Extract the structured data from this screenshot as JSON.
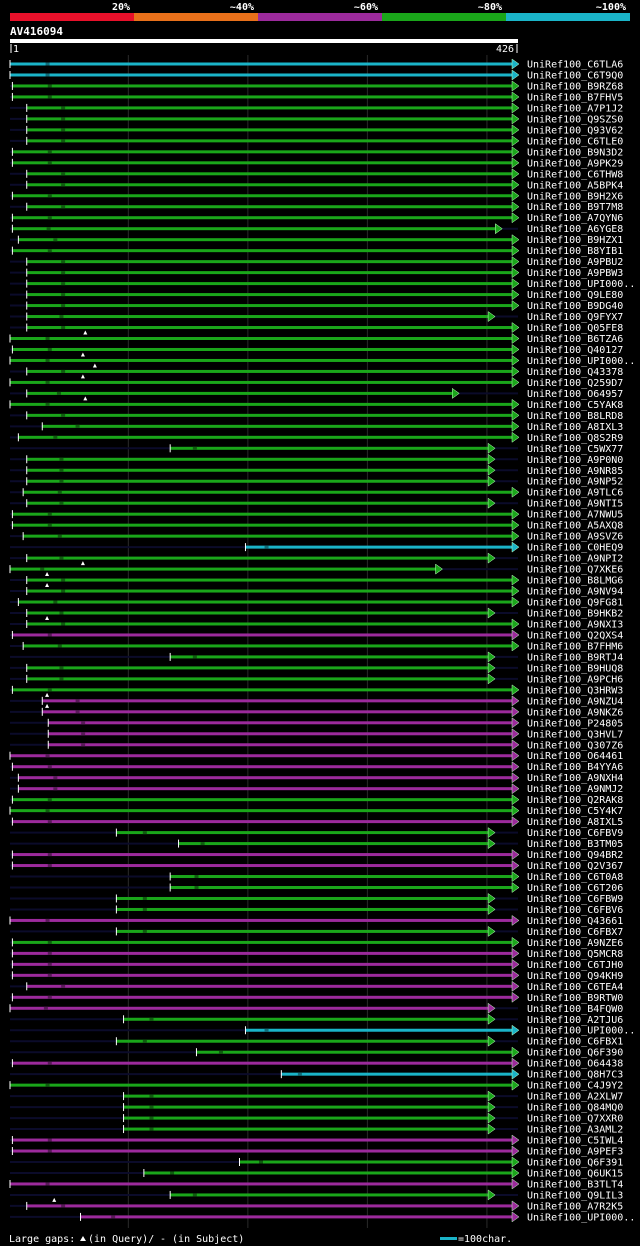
{
  "chart_data": {
    "type": "alignment",
    "query_id": "AV416094",
    "query_length": 426,
    "axis_start_label": "1",
    "axis_end_label": "426",
    "legend": [
      {
        "label": "20%",
        "color": "#e8102a"
      },
      {
        "label": "~40%",
        "color": "#e8701a"
      },
      {
        "label": "~60%",
        "color": "#9c2a9c"
      },
      {
        "label": "~80%",
        "color": "#1aa61a"
      },
      {
        "label": "~100%",
        "color": "#1ab4c8"
      }
    ],
    "footer": {
      "gaps_label": "Large gaps:",
      "query_gap_text": "(in Query)/",
      "subject_gap_text": "- (in Subject)",
      "scale_text": "=100char."
    },
    "hits": [
      {
        "name": "UniRef100_C6TLA6",
        "start": 1,
        "end": 426,
        "cat": 5
      },
      {
        "name": "UniRef100_C6T9Q0",
        "start": 1,
        "end": 426,
        "cat": 5
      },
      {
        "name": "UniRef100_B9RZ68",
        "start": 3,
        "end": 426,
        "cat": 4
      },
      {
        "name": "UniRef100_B7FHV5",
        "start": 3,
        "end": 426,
        "cat": 4
      },
      {
        "name": "UniRef100_A7P1J2",
        "start": 15,
        "end": 426,
        "cat": 4
      },
      {
        "name": "UniRef100_Q9SZS0",
        "start": 15,
        "end": 426,
        "cat": 4
      },
      {
        "name": "UniRef100_Q93V62",
        "start": 15,
        "end": 426,
        "cat": 4
      },
      {
        "name": "UniRef100_C6TLE0",
        "start": 15,
        "end": 426,
        "cat": 4
      },
      {
        "name": "UniRef100_B9N3D2",
        "start": 3,
        "end": 426,
        "cat": 4
      },
      {
        "name": "UniRef100_A9PK29",
        "start": 3,
        "end": 426,
        "cat": 4
      },
      {
        "name": "UniRef100_C6THW8",
        "start": 15,
        "end": 426,
        "cat": 4
      },
      {
        "name": "UniRef100_A5BPK4",
        "start": 15,
        "end": 426,
        "cat": 4
      },
      {
        "name": "UniRef100_B9H2X6",
        "start": 3,
        "end": 426,
        "cat": 4
      },
      {
        "name": "UniRef100_B9T7M8",
        "start": 15,
        "end": 426,
        "cat": 4
      },
      {
        "name": "UniRef100_A7QYN6",
        "start": 3,
        "end": 426,
        "cat": 4
      },
      {
        "name": "UniRef100_A6YGE8",
        "start": 3,
        "end": 412,
        "cat": 4
      },
      {
        "name": "UniRef100_B9HZX1",
        "start": 8,
        "end": 426,
        "cat": 4
      },
      {
        "name": "UniRef100_B8YIB1",
        "start": 3,
        "end": 426,
        "cat": 4
      },
      {
        "name": "UniRef100_A9PBU2",
        "start": 15,
        "end": 426,
        "cat": 4
      },
      {
        "name": "UniRef100_A9PBW3",
        "start": 15,
        "end": 426,
        "cat": 4
      },
      {
        "name": "UniRef100_UPI000..",
        "start": 15,
        "end": 426,
        "cat": 4
      },
      {
        "name": "UniRef100_Q9LE80",
        "start": 15,
        "end": 426,
        "cat": 4
      },
      {
        "name": "UniRef100_B9DG40",
        "start": 15,
        "end": 426,
        "cat": 4
      },
      {
        "name": "UniRef100_Q9FYX7",
        "start": 15,
        "end": 406,
        "cat": 4
      },
      {
        "name": "UniRef100_Q05FE8",
        "start": 15,
        "end": 426,
        "cat": 4
      },
      {
        "name": "UniRef100_B6TZA6",
        "start": 1,
        "end": 426,
        "cat": 4,
        "qgap": 64
      },
      {
        "name": "UniRef100_Q40127",
        "start": 3,
        "end": 426,
        "cat": 4
      },
      {
        "name": "UniRef100_UPI000..",
        "start": 1,
        "end": 426,
        "cat": 4,
        "qgap": 62
      },
      {
        "name": "UniRef100_Q43378",
        "start": 15,
        "end": 426,
        "cat": 4,
        "qgap": 72
      },
      {
        "name": "UniRef100_Q259D7",
        "start": 1,
        "end": 426,
        "cat": 4,
        "qgap": 62
      },
      {
        "name": "UniRef100_O64957",
        "start": 15,
        "end": 376,
        "cat": 4
      },
      {
        "name": "UniRef100_C5YAK8",
        "start": 1,
        "end": 426,
        "cat": 4,
        "qgap": 64
      },
      {
        "name": "UniRef100_B8LRD8",
        "start": 15,
        "end": 426,
        "cat": 4
      },
      {
        "name": "UniRef100_A8IXL3",
        "start": 28,
        "end": 426,
        "cat": 4
      },
      {
        "name": "UniRef100_Q8S2R9",
        "start": 8,
        "end": 426,
        "cat": 4
      },
      {
        "name": "UniRef100_C5WX77",
        "start": 135,
        "end": 406,
        "cat": 4
      },
      {
        "name": "UniRef100_A9P0N0",
        "start": 15,
        "end": 406,
        "cat": 4
      },
      {
        "name": "UniRef100_A9NR85",
        "start": 15,
        "end": 406,
        "cat": 4
      },
      {
        "name": "UniRef100_A9NP52",
        "start": 15,
        "end": 406,
        "cat": 4
      },
      {
        "name": "UniRef100_A9TLC6",
        "start": 12,
        "end": 426,
        "cat": 4
      },
      {
        "name": "UniRef100_A9NTI5",
        "start": 15,
        "end": 406,
        "cat": 4
      },
      {
        "name": "UniRef100_A7NWU5",
        "start": 3,
        "end": 426,
        "cat": 4
      },
      {
        "name": "UniRef100_A5AXQ8",
        "start": 3,
        "end": 426,
        "cat": 4
      },
      {
        "name": "UniRef100_A9SVZ6",
        "start": 12,
        "end": 426,
        "cat": 4
      },
      {
        "name": "UniRef100_C0HEQ9",
        "start": 198,
        "end": 426,
        "cat": 5
      },
      {
        "name": "UniRef100_A9NPI2",
        "start": 15,
        "end": 406,
        "cat": 4
      },
      {
        "name": "UniRef100_Q7XKE6",
        "start": 1,
        "end": 362,
        "cat": 4,
        "qgap": 62
      },
      {
        "name": "UniRef100_B8LMG6",
        "start": 15,
        "end": 426,
        "cat": 4,
        "qgap": 32
      },
      {
        "name": "UniRef100_A9NV94",
        "start": 15,
        "end": 426,
        "cat": 4,
        "qgap": 32
      },
      {
        "name": "UniRef100_Q9FG81",
        "start": 8,
        "end": 426,
        "cat": 4
      },
      {
        "name": "UniRef100_B9HKB2",
        "start": 15,
        "end": 406,
        "cat": 4
      },
      {
        "name": "UniRef100_A9NXI3",
        "start": 15,
        "end": 426,
        "cat": 4,
        "qgap": 32
      },
      {
        "name": "UniRef100_Q2QXS4",
        "start": 3,
        "end": 426,
        "cat": 3
      },
      {
        "name": "UniRef100_B7FHM6",
        "start": 12,
        "end": 426,
        "cat": 4
      },
      {
        "name": "UniRef100_B9RTJ4",
        "start": 135,
        "end": 406,
        "cat": 4
      },
      {
        "name": "UniRef100_B9HUQ8",
        "start": 15,
        "end": 406,
        "cat": 4
      },
      {
        "name": "UniRef100_A9PCH6",
        "start": 15,
        "end": 406,
        "cat": 4
      },
      {
        "name": "UniRef100_Q3HRW3",
        "start": 3,
        "end": 426,
        "cat": 4
      },
      {
        "name": "UniRef100_A9NZU4",
        "start": 28,
        "end": 426,
        "cat": 3,
        "qgap": 32
      },
      {
        "name": "UniRef100_A9NKZ6",
        "start": 28,
        "end": 426,
        "cat": 3,
        "qgap": 32
      },
      {
        "name": "UniRef100_P24805",
        "start": 33,
        "end": 426,
        "cat": 3
      },
      {
        "name": "UniRef100_Q3HVL7",
        "start": 33,
        "end": 426,
        "cat": 3
      },
      {
        "name": "UniRef100_Q307Z6",
        "start": 33,
        "end": 426,
        "cat": 3
      },
      {
        "name": "UniRef100_O64461",
        "start": 1,
        "end": 426,
        "cat": 3
      },
      {
        "name": "UniRef100_B4YYA6",
        "start": 3,
        "end": 426,
        "cat": 3
      },
      {
        "name": "UniRef100_A9NXH4",
        "start": 8,
        "end": 426,
        "cat": 3
      },
      {
        "name": "UniRef100_A9NMJ2",
        "start": 8,
        "end": 426,
        "cat": 3
      },
      {
        "name": "UniRef100_Q2RAK8",
        "start": 3,
        "end": 426,
        "cat": 4
      },
      {
        "name": "UniRef100_C5Y4K7",
        "start": 1,
        "end": 426,
        "cat": 4
      },
      {
        "name": "UniRef100_A8IXL5",
        "start": 3,
        "end": 426,
        "cat": 3
      },
      {
        "name": "UniRef100_C6FBV9",
        "start": 90,
        "end": 406,
        "cat": 4
      },
      {
        "name": "UniRef100_B3TM05",
        "start": 142,
        "end": 406,
        "cat": 4
      },
      {
        "name": "UniRef100_Q94BR2",
        "start": 3,
        "end": 426,
        "cat": 3
      },
      {
        "name": "UniRef100_Q2V367",
        "start": 3,
        "end": 426,
        "cat": 3
      },
      {
        "name": "UniRef100_C6T0A8",
        "start": 135,
        "end": 426,
        "cat": 4
      },
      {
        "name": "UniRef100_C6T206",
        "start": 135,
        "end": 426,
        "cat": 4
      },
      {
        "name": "UniRef100_C6FBW9",
        "start": 90,
        "end": 406,
        "cat": 4
      },
      {
        "name": "UniRef100_C6FBV6",
        "start": 90,
        "end": 406,
        "cat": 4
      },
      {
        "name": "UniRef100_Q43661",
        "start": 1,
        "end": 426,
        "cat": 3
      },
      {
        "name": "UniRef100_C6FBX7",
        "start": 90,
        "end": 406,
        "cat": 4
      },
      {
        "name": "UniRef100_A9NZE6",
        "start": 3,
        "end": 426,
        "cat": 4
      },
      {
        "name": "UniRef100_Q5MCR8",
        "start": 3,
        "end": 426,
        "cat": 3
      },
      {
        "name": "UniRef100_C6TJH0",
        "start": 3,
        "end": 426,
        "cat": 3
      },
      {
        "name": "UniRef100_Q94KH9",
        "start": 3,
        "end": 426,
        "cat": 3
      },
      {
        "name": "UniRef100_C6TEA4",
        "start": 15,
        "end": 426,
        "cat": 3
      },
      {
        "name": "UniRef100_B9RTW0",
        "start": 3,
        "end": 426,
        "cat": 3
      },
      {
        "name": "UniRef100_B4FQW0",
        "start": 1,
        "end": 406,
        "cat": 3
      },
      {
        "name": "UniRef100_A2TJU6",
        "start": 96,
        "end": 406,
        "cat": 4
      },
      {
        "name": "UniRef100_UPI000..",
        "start": 198,
        "end": 426,
        "cat": 5
      },
      {
        "name": "UniRef100_C6FBX1",
        "start": 90,
        "end": 406,
        "cat": 4
      },
      {
        "name": "UniRef100_Q6F390",
        "start": 157,
        "end": 426,
        "cat": 4
      },
      {
        "name": "UniRef100_O64438",
        "start": 3,
        "end": 426,
        "cat": 3
      },
      {
        "name": "UniRef100_Q8H7C3",
        "start": 228,
        "end": 426,
        "cat": 5
      },
      {
        "name": "UniRef100_C4J9Y2",
        "start": 1,
        "end": 426,
        "cat": 4
      },
      {
        "name": "UniRef100_A2XLW7",
        "start": 96,
        "end": 406,
        "cat": 4
      },
      {
        "name": "UniRef100_Q84MQ0",
        "start": 96,
        "end": 406,
        "cat": 4
      },
      {
        "name": "UniRef100_Q7XXR0",
        "start": 96,
        "end": 406,
        "cat": 4
      },
      {
        "name": "UniRef100_A3AML2",
        "start": 96,
        "end": 406,
        "cat": 4
      },
      {
        "name": "UniRef100_C5IWL4",
        "start": 3,
        "end": 426,
        "cat": 3
      },
      {
        "name": "UniRef100_A9PEF3",
        "start": 3,
        "end": 426,
        "cat": 3
      },
      {
        "name": "UniRef100_Q6F391",
        "start": 193,
        "end": 426,
        "cat": 4
      },
      {
        "name": "UniRef100_Q6UK15",
        "start": 113,
        "end": 426,
        "cat": 4
      },
      {
        "name": "UniRef100_B3TLT4",
        "start": 1,
        "end": 426,
        "cat": 3
      },
      {
        "name": "UniRef100_Q9LIL3",
        "start": 135,
        "end": 406,
        "cat": 4
      },
      {
        "name": "UniRef100_A7R2K5",
        "start": 15,
        "end": 426,
        "cat": 3,
        "qgap": 38
      },
      {
        "name": "UniRef100_UPI000..",
        "start": 60,
        "end": 426,
        "cat": 3
      }
    ]
  }
}
